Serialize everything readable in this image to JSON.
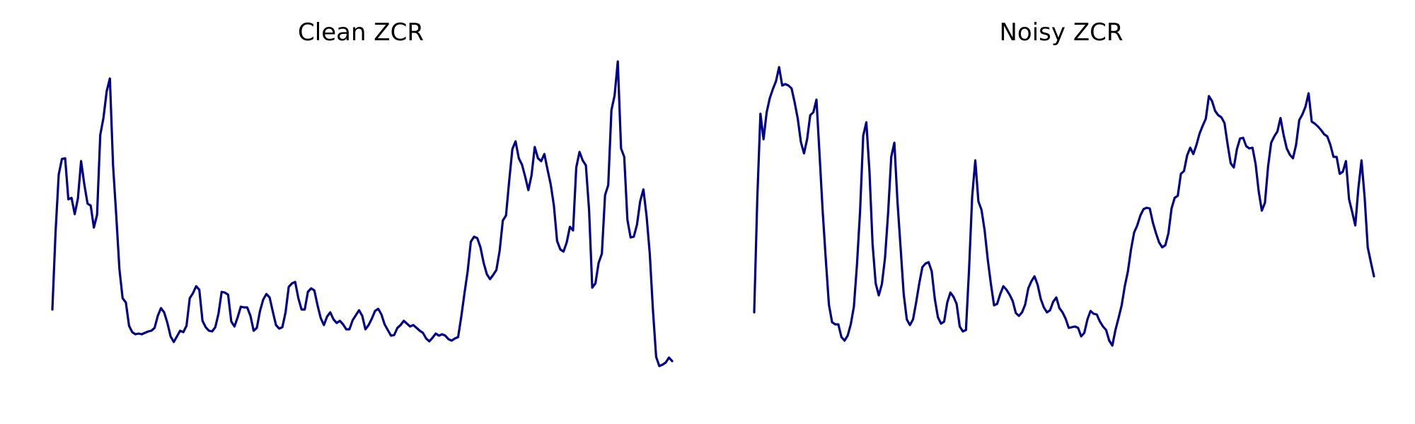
{
  "style": {
    "line_color": "#00008b",
    "background": "#ffffff"
  },
  "chart_data": [
    {
      "type": "line",
      "title": "Clean ZCR",
      "xlabel": "",
      "ylabel": "",
      "axes": "off",
      "grid": false,
      "ylim": [
        0,
        470
      ],
      "series": [
        {
          "values": [
            129,
            238,
            320,
            342,
            343,
            285,
            287,
            264,
            286,
            339,
            306,
            279,
            276,
            245,
            263,
            376,
            400,
            438,
            456,
            333,
            262,
            186,
            145,
            139,
            106,
            97,
            94,
            95,
            94,
            96,
            98,
            99,
            103,
            120,
            131,
            125,
            110,
            91,
            83,
            91,
            99,
            97,
            106,
            145,
            152,
            162,
            157,
            113,
            104,
            99,
            98,
            104,
            123,
            154,
            153,
            150,
            112,
            105,
            118,
            133,
            132,
            132,
            120,
            99,
            103,
            127,
            143,
            151,
            146,
            126,
            107,
            102,
            104,
            125,
            161,
            166,
            168,
            145,
            129,
            129,
            154,
            159,
            156,
            135,
            117,
            107,
            119,
            125,
            115,
            110,
            113,
            108,
            101,
            101,
            114,
            121,
            128,
            120,
            101,
            107,
            116,
            127,
            130,
            122,
            108,
            100,
            92,
            93,
            103,
            107,
            113,
            109,
            105,
            107,
            103,
            99,
            96,
            88,
            84,
            89,
            95,
            92,
            94,
            92,
            87,
            85,
            88,
            90,
            119,
            152,
            183,
            225,
            232,
            230,
            217,
            195,
            179,
            172,
            178,
            185,
            212,
            255,
            262,
            311,
            356,
            367,
            343,
            334,
            317,
            298,
            319,
            359,
            343,
            339,
            349,
            327,
            306,
            276,
            226,
            214,
            211,
            224,
            246,
            241,
            330,
            352,
            340,
            333,
            270,
            160,
            166,
            195,
            208,
            291,
            305,
            411,
            432,
            480,
            357,
            345,
            256,
            231,
            232,
            249,
            282,
            299,
            261,
            208,
            128,
            62,
            49,
            51,
            54,
            61,
            56
          ]
        }
      ]
    },
    {
      "type": "line",
      "title": "Noisy ZCR",
      "xlabel": "",
      "ylabel": "",
      "axes": "off",
      "grid": false,
      "ylim": [
        0,
        470
      ],
      "series": [
        {
          "values": [
            125,
            287,
            406,
            370,
            408,
            428,
            441,
            452,
            472,
            446,
            448,
            446,
            442,
            422,
            399,
            366,
            350,
            370,
            404,
            408,
            426,
            348,
            268,
            200,
            136,
            111,
            108,
            108,
            90,
            85,
            92,
            108,
            133,
            193,
            269,
            375,
            394,
            325,
            222,
            166,
            149,
            165,
            202,
            266,
            345,
            365,
            282,
            217,
            151,
            115,
            107,
            115,
            139,
            166,
            189,
            194,
            196,
            183,
            144,
            118,
            109,
            112,
            139,
            153,
            147,
            137,
            105,
            98,
            100,
            186,
            289,
            340,
            282,
            270,
            241,
            199,
            165,
            135,
            137,
            151,
            162,
            157,
            150,
            141,
            124,
            120,
            125,
            136,
            159,
            169,
            176,
            164,
            144,
            132,
            125,
            128,
            140,
            146,
            131,
            125,
            116,
            103,
            104,
            105,
            103,
            91,
            96,
            115,
            127,
            123,
            122,
            112,
            105,
            100,
            85,
            78,
            100,
            117,
            135,
            162,
            183,
            214,
            238,
            248,
            262,
            271,
            273,
            272,
            252,
            237,
            224,
            217,
            220,
            237,
            272,
            287,
            290,
            321,
            325,
            347,
            358,
            349,
            362,
            378,
            389,
            399,
            431,
            424,
            410,
            404,
            401,
            393,
            363,
            336,
            330,
            356,
            371,
            372,
            360,
            357,
            358,
            335,
            296,
            269,
            280,
            331,
            365,
            374,
            381,
            400,
            376,
            357,
            348,
            343,
            362,
            397,
            405,
            416,
            435,
            395,
            392,
            388,
            383,
            377,
            374,
            362,
            345,
            345,
            321,
            324,
            339,
            285,
            267,
            248,
            301,
            340,
            288,
            217,
            196,
            176
          ]
        }
      ]
    }
  ]
}
